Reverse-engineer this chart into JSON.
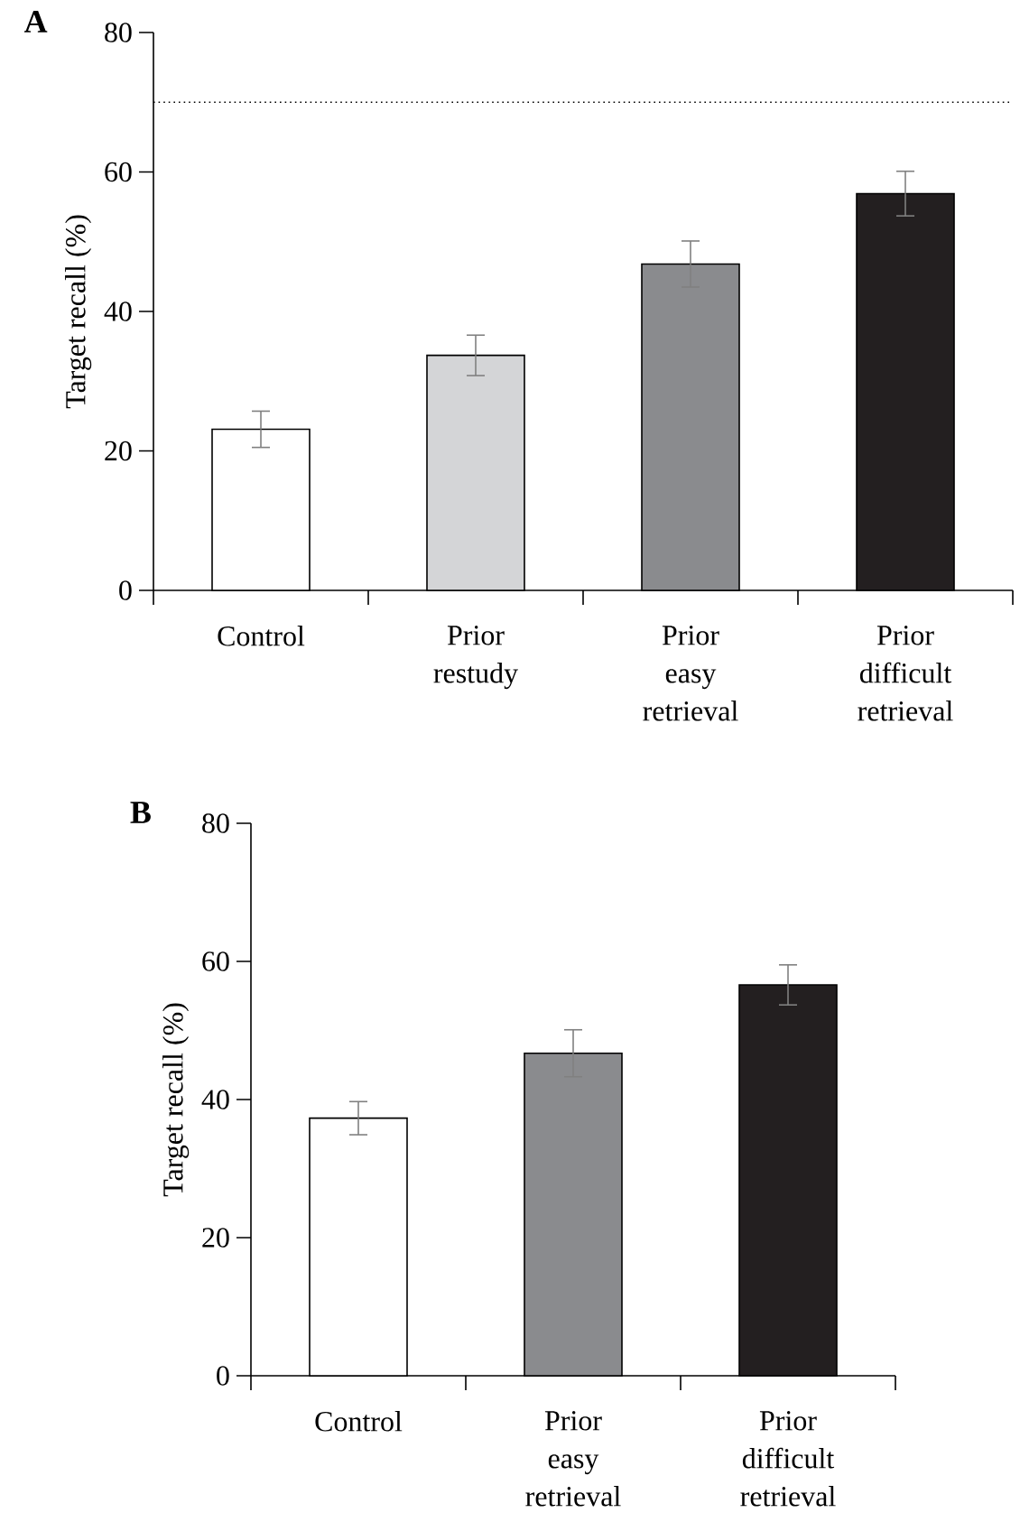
{
  "chart_data": [
    {
      "type": "bar",
      "title": "A",
      "ylabel": "Target recall (%)",
      "categories": [
        "Control",
        "Prior restudy",
        "Prior easy retrieval",
        "Prior difficult retrieval"
      ],
      "values": [
        23.1,
        33.7,
        46.8,
        56.9
      ],
      "colors": [
        "#ffffff",
        "#d4d5d7",
        "#8a8b8e",
        "#231f20"
      ],
      "errors": [
        2.6,
        2.9,
        3.3,
        3.2
      ],
      "ylim": [
        0,
        80
      ],
      "yticks": [
        0,
        20,
        40,
        60,
        80
      ],
      "ref_lines": [
        {
          "axis": "y",
          "value": 70,
          "color": "#000000",
          "line_style": "dotted"
        }
      ]
    },
    {
      "type": "bar",
      "title": "B",
      "ylabel": "Target recall (%)",
      "categories": [
        "Control",
        "Prior easy retrieval",
        "Prior difficult retrieval"
      ],
      "values": [
        37.3,
        46.7,
        56.6
      ],
      "colors": [
        "#ffffff",
        "#8a8b8e",
        "#231f20"
      ],
      "errors": [
        2.4,
        3.4,
        2.9
      ],
      "ylim": [
        0,
        80
      ],
      "yticks": [
        0,
        20,
        40,
        60,
        80
      ]
    }
  ]
}
